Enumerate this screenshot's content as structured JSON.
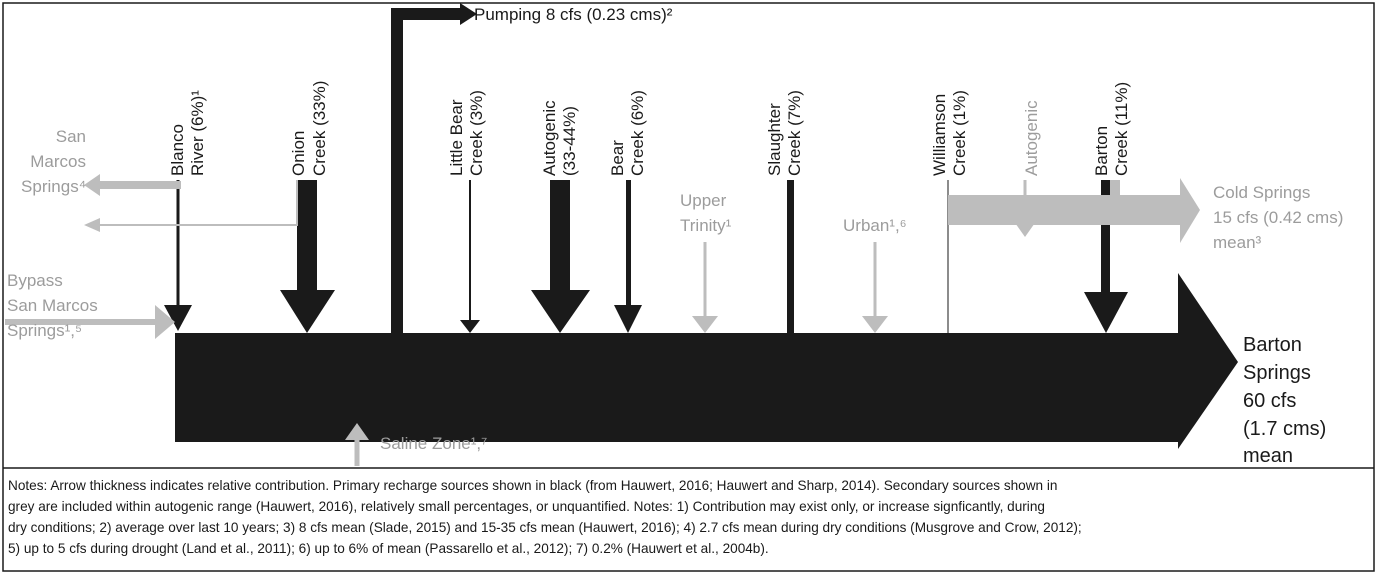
{
  "pumping": "Pumping 8 cfs (0.23 cms)²",
  "sources": [
    [
      "Blanco",
      "River (6%)¹"
    ],
    [
      "Onion",
      "Creek (33%)"
    ],
    [
      "Little Bear",
      "Creek (3%)"
    ],
    [
      "Autogenic",
      "(33-44%)"
    ],
    [
      "Bear",
      "Creek (6%)"
    ],
    [
      "Slaughter",
      "Creek (7%)"
    ],
    [
      "Williamson",
      "Creek (1%)"
    ],
    [
      "Autogenic"
    ],
    [
      "Barton",
      "Creek (11%)"
    ]
  ],
  "san_marcos": [
    "San",
    "Marcos",
    "Springs⁴"
  ],
  "upper_trinity": [
    "Upper",
    "Trinity¹"
  ],
  "urban": "Urban¹,⁶",
  "cold_springs": [
    "Cold Springs",
    "15 cfs (0.42 cms)",
    "mean³"
  ],
  "bypass": [
    "Bypass",
    "San Marcos",
    "Springs¹,⁵"
  ],
  "saline": "Saline Zone¹,⁷",
  "outlet": [
    "Barton",
    "Springs",
    "60 cfs",
    "(1.7 cms)",
    "mean"
  ],
  "notes": [
    "Notes: Arrow thickness indicates relative contribution. Primary recharge sources shown in black (from Hauwert, 2016;  Hauwert and Sharp, 2014).  Secondary sources shown in",
    "grey are included within autogenic range (Hauwert, 2016), relatively small percentages, or unquantified. Notes: 1) Contribution may exist only, or increase signficantly, during",
    "dry conditions; 2) average over last 10 years; 3) 8 cfs mean (Slade, 2015) and 15-35 cfs mean (Hauwert, 2016); 4) 2.7 cfs mean during dry conditions (Musgrove and Crow, 2012);",
    "5) up to 5 cfs during drought (Land et al., 2011); 6) up to 6% of mean (Passarello et al., 2012); 7) 0.2% (Hauwert et al., 2004b)."
  ]
}
